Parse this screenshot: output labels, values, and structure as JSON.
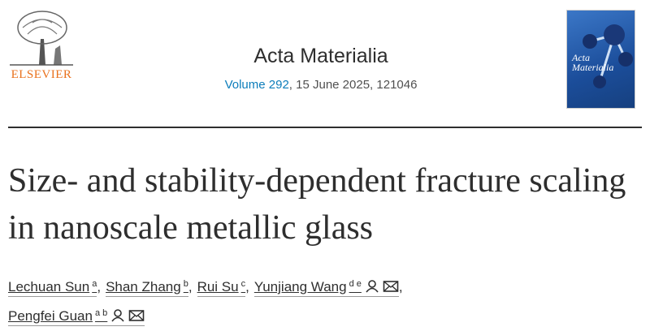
{
  "header": {
    "publisher": "ELSEVIER",
    "journal": "Acta Materialia",
    "volume": "Volume 292",
    "issue_info": ", 15 June 2025, 121046",
    "cover_title": "Acta Materialia"
  },
  "article": {
    "title": "Size- and stability-dependent fracture scaling in nanoscale metallic glass",
    "authors": [
      {
        "name": "Lechuan Sun",
        "sup": "a",
        "trailing": ","
      },
      {
        "name": "Shan Zhang",
        "sup": "b",
        "trailing": ","
      },
      {
        "name": "Rui Su",
        "sup": "c",
        "trailing": ","
      },
      {
        "name": "Yunjiang Wang",
        "sup": "d e",
        "trailing": ",",
        "contact": true
      },
      {
        "name": "Pengfei Guan",
        "sup": "a b",
        "contact": true
      }
    ]
  }
}
